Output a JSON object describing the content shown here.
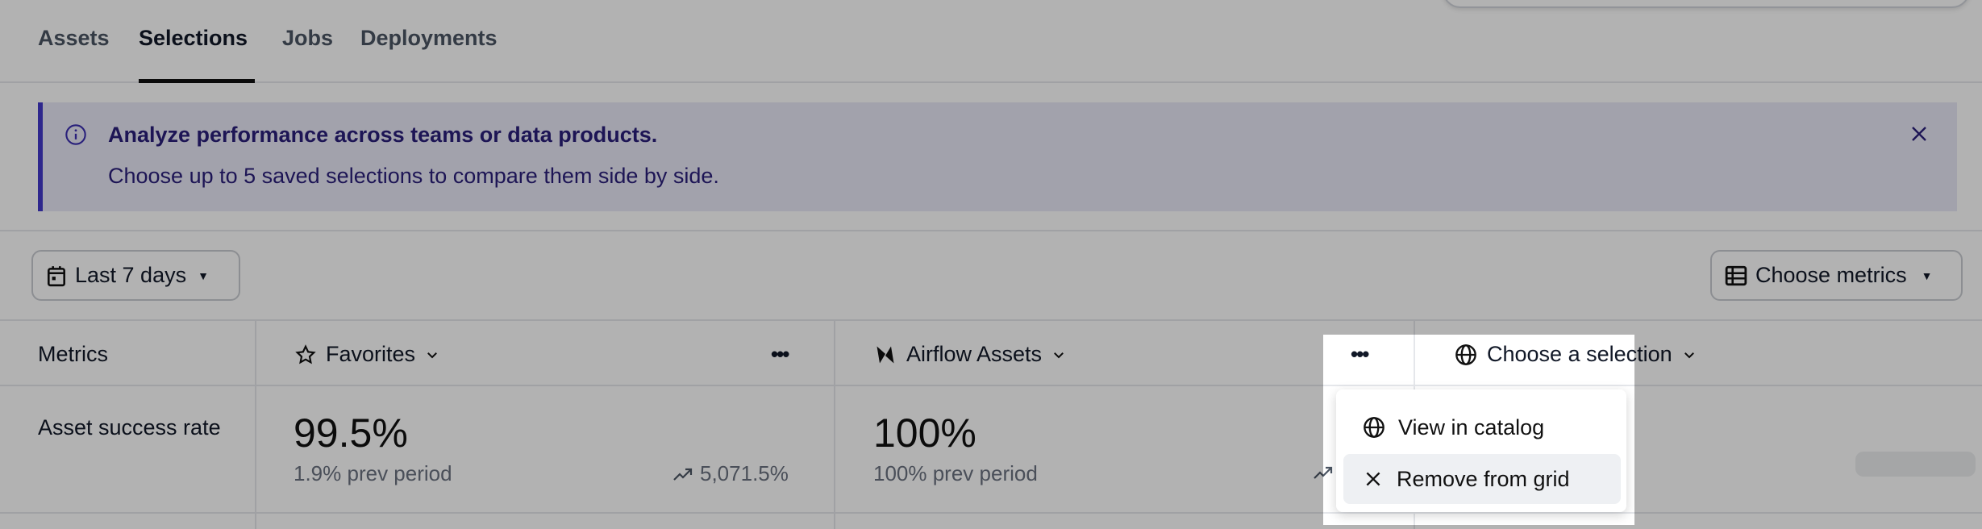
{
  "tabs": [
    {
      "label": "Assets"
    },
    {
      "label": "Selections",
      "active": true
    },
    {
      "label": "Jobs"
    },
    {
      "label": "Deployments"
    }
  ],
  "banner": {
    "icon": "info-icon",
    "title": "Analyze performance across teams or data products.",
    "subtitle": "Choose up to 5 saved selections to compare them side by side.",
    "close_icon": "close-icon"
  },
  "toolbar": {
    "date_range": "Last 7 days",
    "choose_metrics": "Choose metrics"
  },
  "grid": {
    "metrics_header": "Metrics",
    "columns": [
      {
        "icon": "star-icon",
        "label": "Favorites",
        "value": "99.5%",
        "prev": "1.9% prev period",
        "change": "5,071.5%"
      },
      {
        "icon": "airflow-icon",
        "label": "Airflow Assets",
        "value": "100%",
        "prev": "100% prev period",
        "change": ""
      },
      {
        "icon": "globe-icon",
        "label": "Choose a selection"
      }
    ],
    "rows": [
      {
        "label": "Asset success rate"
      }
    ]
  },
  "menu": {
    "items": [
      {
        "icon": "globe-icon",
        "label": "View in catalog"
      },
      {
        "icon": "close-icon",
        "label": "Remove from grid",
        "highlighted": true
      }
    ]
  }
}
